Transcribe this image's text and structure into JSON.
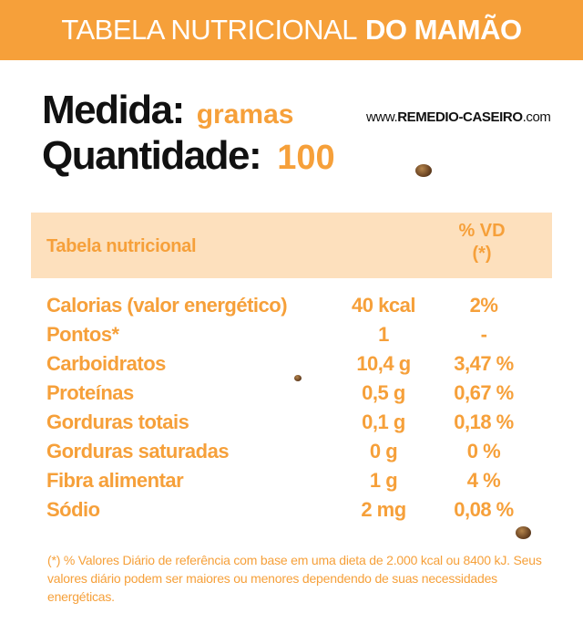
{
  "header": {
    "title_regular": "TABELA NUTRICIONAL",
    "title_bold": "DO MAMÃO"
  },
  "measure": {
    "medida_label": "Medida:",
    "medida_value": "gramas",
    "quantidade_label": "Quantidade:",
    "quantidade_value": "100"
  },
  "site": {
    "prefix": "www.",
    "name": "REMEDIO-CASEIRO",
    "suffix": ".com"
  },
  "table": {
    "col_label": "Tabela nutricional",
    "col_vd_line1": "% VD",
    "col_vd_line2": "(*)",
    "rows": [
      {
        "name": "Calorias (valor energético)",
        "amount": "40 kcal",
        "vd": "2%"
      },
      {
        "name": "Pontos*",
        "amount": "1",
        "vd": "-"
      },
      {
        "name": "Carboidratos",
        "amount": "10,4 g",
        "vd": "3,47 %"
      },
      {
        "name": "Proteínas",
        "amount": "0,5 g",
        "vd": "0,67 %"
      },
      {
        "name": "Gorduras totais",
        "amount": "0,1 g",
        "vd": "0,18 %"
      },
      {
        "name": "Gorduras saturadas",
        "amount": "0 g",
        "vd": "0 %"
      },
      {
        "name": "Fibra alimentar",
        "amount": "1 g",
        "vd": "4 %"
      },
      {
        "name": "Sódio",
        "amount": "2 mg",
        "vd": "0,08 %"
      }
    ]
  },
  "footnote": "(*) % Valores Diário de referência com base em uma dieta de 2.000 kcal ou 8400 kJ. Seus valores diário podem ser maiores ou menores dependendo de suas necessidades energéticas.",
  "colors": {
    "accent": "#f6a03a",
    "header_band": "#fde0bd",
    "text_dark": "#111111"
  }
}
